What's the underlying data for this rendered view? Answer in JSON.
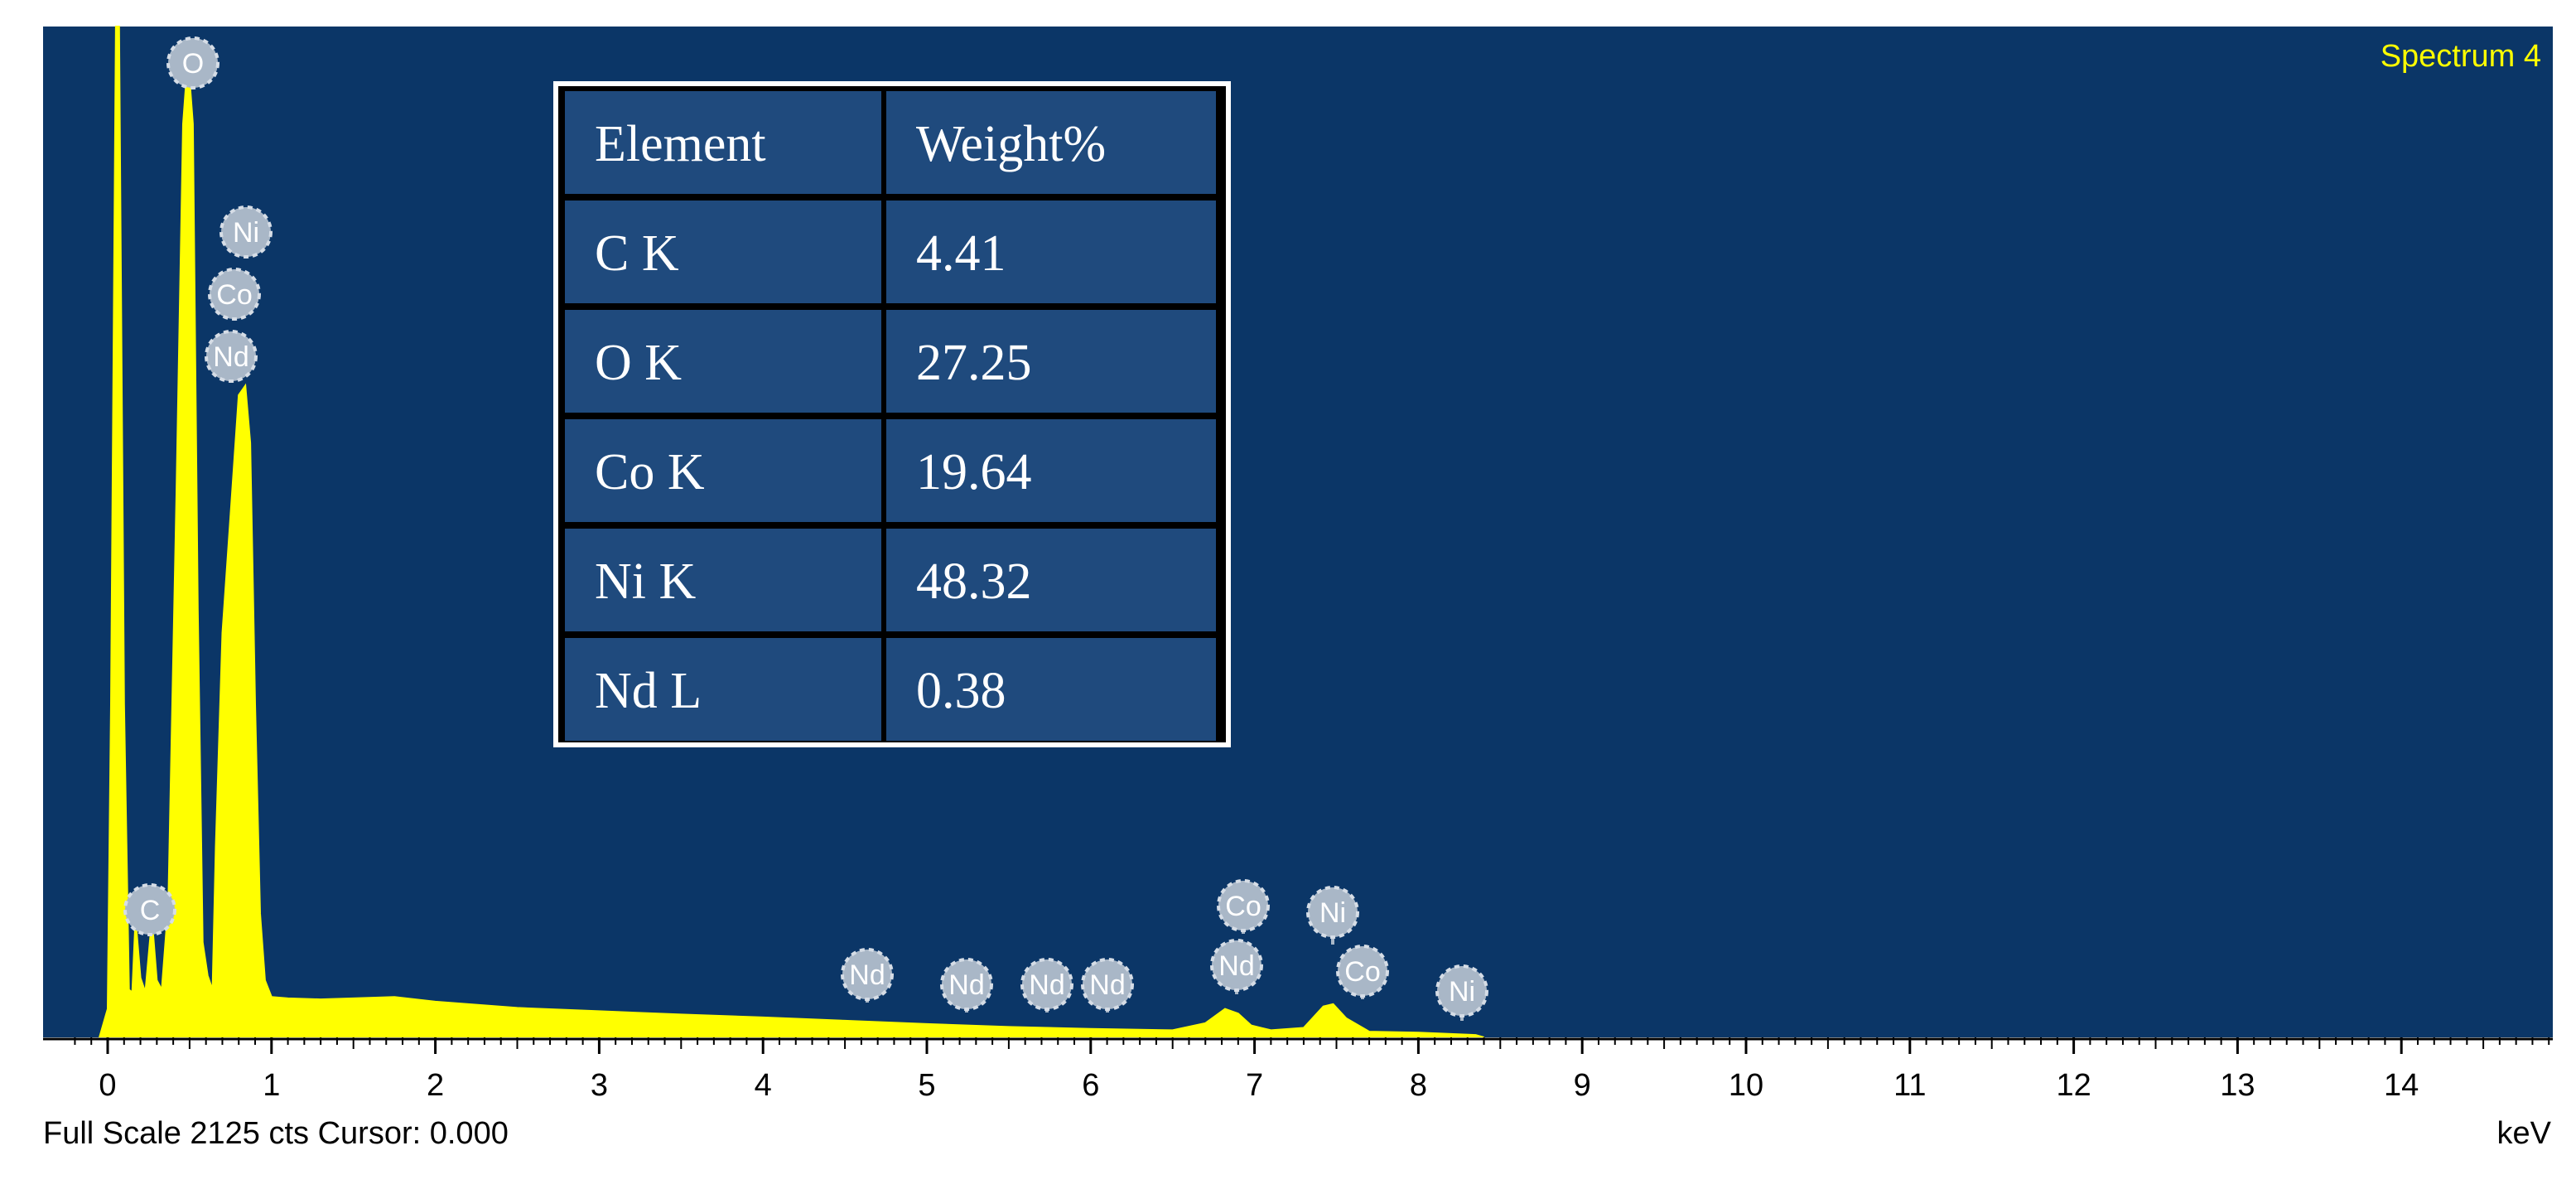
{
  "chart_data": {
    "type": "area",
    "title": "Spectrum 4",
    "xlabel": "keV",
    "ylabel": "",
    "xlim": [
      -0.4,
      14.86
    ],
    "ylim": [
      0,
      2125
    ],
    "x_ticks": [
      0,
      1,
      2,
      3,
      4,
      5,
      6,
      7,
      8,
      9,
      10,
      11,
      12,
      13,
      14
    ],
    "x_tick_labels": [
      "0",
      "1",
      "2",
      "3",
      "4",
      "5",
      "6",
      "7",
      "8",
      "9",
      "10",
      "11",
      "12",
      "13",
      "14"
    ],
    "grid": false,
    "series": [
      {
        "x": [
          -0.05,
          0.0,
          0.02,
          0.05,
          0.07,
          0.1,
          0.13,
          0.15,
          0.17,
          0.2,
          0.23,
          0.27,
          0.3,
          0.33,
          0.37,
          0.42,
          0.46,
          0.49,
          0.52,
          0.55,
          0.58,
          0.61,
          0.64,
          0.66,
          0.7,
          0.75,
          0.8,
          0.84,
          0.87,
          0.9,
          0.93,
          0.96,
          1.0,
          1.1,
          1.3,
          1.5,
          1.75,
          2.0,
          2.5,
          3.0,
          3.5,
          4.0,
          4.5,
          5.0,
          5.5,
          6.0,
          6.5,
          6.7,
          6.82,
          6.9,
          6.98,
          7.1,
          7.3,
          7.42,
          7.48,
          7.56,
          7.7,
          8.0,
          8.35,
          8.4
        ],
        "y": [
          0,
          60,
          700,
          2125,
          2125,
          700,
          100,
          95,
          250,
          125,
          95,
          250,
          120,
          100,
          280,
          1150,
          1920,
          2060,
          1920,
          900,
          200,
          130,
          100,
          400,
          850,
          1100,
          1350,
          1370,
          1250,
          700,
          260,
          120,
          85,
          82,
          80,
          82,
          85,
          75,
          62,
          55,
          48,
          42,
          35,
          28,
          22,
          18,
          15,
          30,
          60,
          50,
          25,
          15,
          20,
          65,
          70,
          40,
          12,
          10,
          5,
          0
        ]
      }
    ],
    "markers": [
      {
        "label": "C",
        "x": 0.27,
        "y": 210
      },
      {
        "label": "O",
        "x": 0.52,
        "y": 2060
      },
      {
        "label": "Ni",
        "x": 0.85,
        "y": 1290
      },
      {
        "label": "Co",
        "x": 0.78,
        "y": 1290
      },
      {
        "label": "Nd",
        "x": 0.75,
        "y": 1290
      },
      {
        "label": "Nd",
        "x": 4.63,
        "y": 0
      },
      {
        "label": "Nd",
        "x": 5.23,
        "y": 0
      },
      {
        "label": "Nd",
        "x": 5.72,
        "y": 0
      },
      {
        "label": "Nd",
        "x": 6.09,
        "y": 0
      },
      {
        "label": "Nd",
        "x": 6.89,
        "y": 0
      },
      {
        "label": "Co",
        "x": 6.93,
        "y": 0
      },
      {
        "label": "Ni",
        "x": 7.48,
        "y": 0
      },
      {
        "label": "Co",
        "x": 7.65,
        "y": 0
      },
      {
        "label": "Ni",
        "x": 8.26,
        "y": 0
      }
    ],
    "table": {
      "headers": [
        "Element",
        "Weight%"
      ],
      "rows": [
        [
          "C K",
          "4.41"
        ],
        [
          "O K",
          "27.25"
        ],
        [
          "Co K",
          "19.64"
        ],
        [
          "Ni K",
          "48.32"
        ],
        [
          "Nd L",
          "0.38"
        ]
      ]
    },
    "footer": "Full Scale 2125 cts Cursor: 0.000"
  },
  "colors": {
    "plot_background": "#0b3667",
    "spectrum_fill": "#ffff00",
    "title_text": "#ffff00",
    "axis_background": "#ffffff",
    "axis_text": "#000000",
    "marker_fill": "#a9b7c7",
    "marker_text": "#ffffff",
    "table_cell": "#1f4a7d",
    "table_border": "#000000",
    "table_frame": "#ffffff"
  }
}
